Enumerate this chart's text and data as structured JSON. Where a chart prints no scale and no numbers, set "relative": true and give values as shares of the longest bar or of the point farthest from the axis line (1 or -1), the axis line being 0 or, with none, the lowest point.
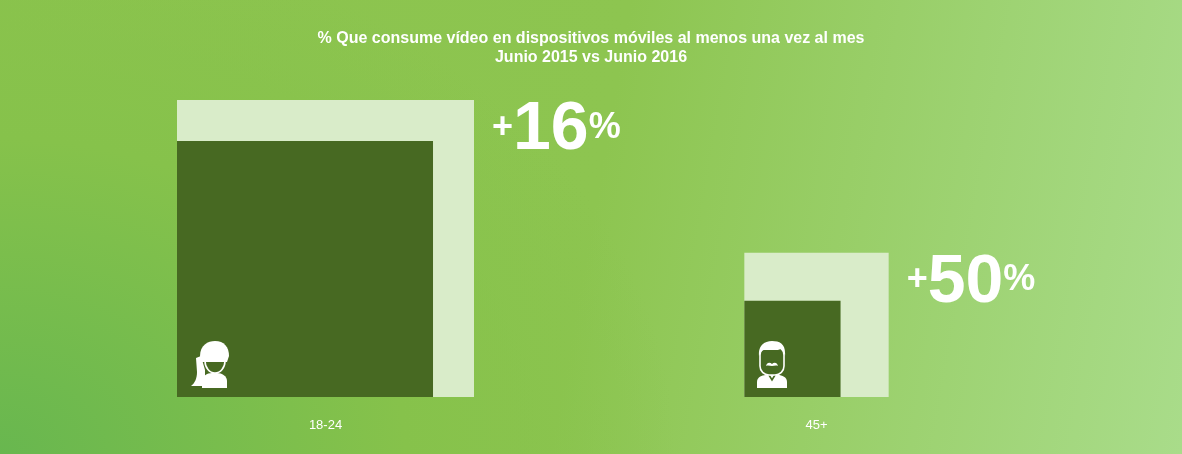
{
  "chart_data": {
    "type": "bar",
    "title": "% Que consume vídeo en dispositivos móviles al menos una vez al mes",
    "subtitle": "Junio 2015 vs Junio 2016",
    "categories": [
      "18-24",
      "45+"
    ],
    "relative": true,
    "series": [
      {
        "color": "#d9ecc9",
        "values": [
          1,
          0.486
        ]
      },
      {
        "color": "#476922",
        "values": [
          0.862,
          0.324
        ]
      }
    ],
    "annotations": [
      {
        "text": "+16%",
        "x": "18-24",
        "y": 1
      },
      {
        "text": "+50%",
        "x": "45+",
        "y": 0.486
      }
    ]
  }
}
